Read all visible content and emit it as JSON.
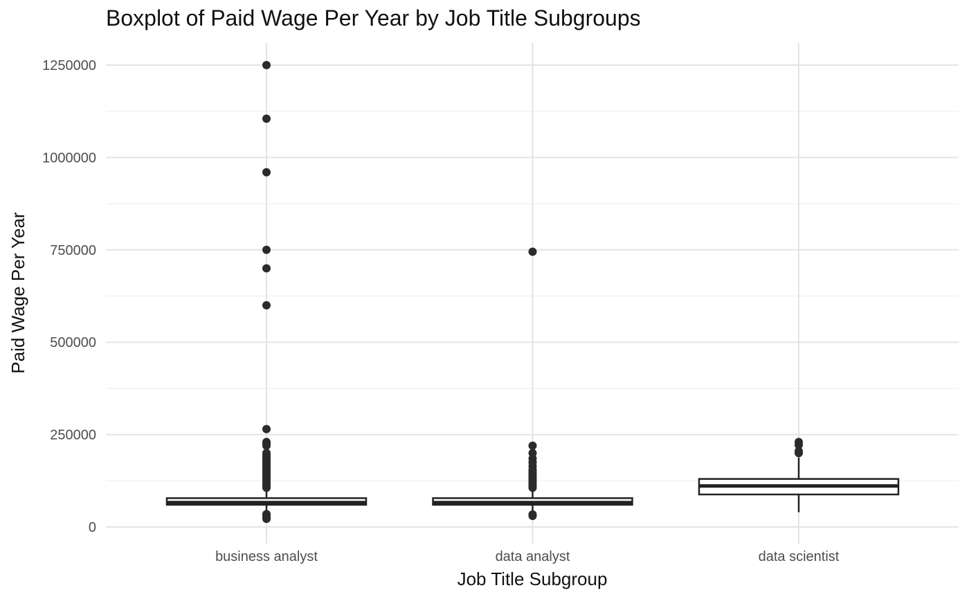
{
  "chart_data": {
    "type": "boxplot",
    "title": "Boxplot of Paid Wage Per Year by Job Title Subgroups",
    "xlabel": "Job Title Subgroup",
    "ylabel": "Paid Wage Per Year",
    "ylim": [
      -45000,
      1310000
    ],
    "yticks": [
      0,
      250000,
      500000,
      750000,
      1000000,
      1250000
    ],
    "ytick_labels": [
      "0",
      "250000",
      "500000",
      "750000",
      "1000000",
      "1250000"
    ],
    "grid": true,
    "categories": [
      "business analyst",
      "data analyst",
      "data scientist"
    ],
    "boxes": [
      {
        "category": "business analyst",
        "whisker_low": 38000,
        "q1": 60000,
        "median": 66000,
        "q3": 78000,
        "whisker_high": 104000,
        "outliers": [
          1250000,
          1105000,
          960000,
          750000,
          700000,
          600000,
          265000,
          230000,
          225000,
          220000,
          200000,
          195000,
          190000,
          185000,
          180000,
          175000,
          170000,
          165000,
          160000,
          155000,
          150000,
          145000,
          140000,
          135000,
          130000,
          125000,
          120000,
          115000,
          110000,
          106000,
          35000,
          30000,
          25000,
          22000
        ]
      },
      {
        "category": "data analyst",
        "whisker_low": 36000,
        "q1": 60000,
        "median": 66000,
        "q3": 78000,
        "whisker_high": 104000,
        "outliers": [
          745000,
          220000,
          200000,
          185000,
          175000,
          165000,
          155000,
          150000,
          145000,
          140000,
          135000,
          130000,
          125000,
          120000,
          115000,
          110000,
          106000,
          34000,
          30000
        ]
      },
      {
        "category": "data scientist",
        "whisker_low": 40000,
        "q1": 88000,
        "median": 111000,
        "q3": 130000,
        "whisker_high": 188000,
        "outliers": [
          230000,
          222000,
          205000,
          200000
        ]
      }
    ]
  },
  "colors": {
    "box_stroke": "#222222",
    "box_fill": "#ffffff",
    "outlier": "#2b2b2b",
    "grid": "#e3e3e3"
  }
}
